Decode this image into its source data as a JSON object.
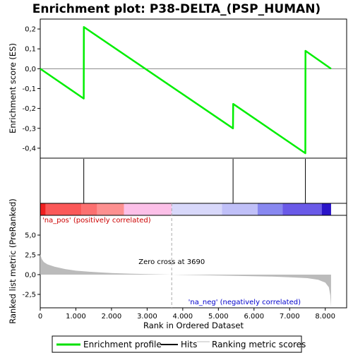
{
  "chart_data": {
    "type": "line",
    "title": "Enrichment plot: P38-DELTA_(PSP_HUMAN)",
    "es_panel": {
      "ylabel": "Enrichment score (ES)",
      "ylim": [
        -0.45,
        0.25
      ],
      "yticks": [
        0.2,
        0.1,
        0.0,
        -0.1,
        -0.2,
        -0.3,
        -0.4
      ],
      "ytick_labels": [
        "0,2",
        "0,1",
        "0,0",
        "-0,1",
        "-0,2",
        "-0,3",
        "-0,4"
      ],
      "profile": [
        {
          "x": 0,
          "y": 0.0
        },
        {
          "x": 1220,
          "y": -0.15
        },
        {
          "x": 1225,
          "y": 0.21
        },
        {
          "x": 5410,
          "y": -0.3
        },
        {
          "x": 5415,
          "y": -0.177
        },
        {
          "x": 7440,
          "y": -0.425
        },
        {
          "x": 7445,
          "y": 0.09
        },
        {
          "x": 8163,
          "y": 0.0
        }
      ]
    },
    "hits": [
      1222,
      5412,
      7442
    ],
    "rank_panel": {
      "ylabel": "Ranked list metric (PreRanked)",
      "ylim": [
        -4.2,
        7.5
      ],
      "yticks": [
        5.0,
        2.5,
        0.0,
        -2.5
      ],
      "ytick_labels": [
        "5,0",
        "2,5",
        "0,0",
        "-2,5"
      ],
      "metric_curve": [
        {
          "x": 0,
          "y": 2.6
        },
        {
          "x": 40,
          "y": 2.0
        },
        {
          "x": 100,
          "y": 1.6
        },
        {
          "x": 200,
          "y": 1.3
        },
        {
          "x": 400,
          "y": 1.0
        },
        {
          "x": 700,
          "y": 0.7
        },
        {
          "x": 1000,
          "y": 0.5
        },
        {
          "x": 1500,
          "y": 0.33
        },
        {
          "x": 2000,
          "y": 0.2
        },
        {
          "x": 2500,
          "y": 0.12
        },
        {
          "x": 3000,
          "y": 0.06
        },
        {
          "x": 3690,
          "y": 0.0
        },
        {
          "x": 4500,
          "y": -0.07
        },
        {
          "x": 5500,
          "y": -0.15
        },
        {
          "x": 6500,
          "y": -0.25
        },
        {
          "x": 7000,
          "y": -0.33
        },
        {
          "x": 7500,
          "y": -0.45
        },
        {
          "x": 7800,
          "y": -0.65
        },
        {
          "x": 8000,
          "y": -1.0
        },
        {
          "x": 8100,
          "y": -1.6
        },
        {
          "x": 8140,
          "y": -2.6
        },
        {
          "x": 8163,
          "y": -4.1
        }
      ],
      "zero_cross": 3690,
      "zero_cross_label": "Zero cross at 3690",
      "pos_label": "'na_pos' (positively correlated)",
      "neg_label": "'na_neg' (negatively correlated)"
    },
    "xlabel": "Rank in Ordered Dataset",
    "xlim": [
      0,
      8600
    ],
    "xticks": [
      0,
      1000,
      2000,
      3000,
      4000,
      5000,
      6000,
      7000,
      8000
    ],
    "xtick_labels": [
      "0",
      "1.000",
      "2.000",
      "3.000",
      "4.000",
      "5.000",
      "6.000",
      "7.000",
      "8.000"
    ],
    "color_bar": [
      {
        "from": 0,
        "to": 150,
        "color": "#f02020"
      },
      {
        "from": 150,
        "to": 1150,
        "color": "#fb5858"
      },
      {
        "from": 1150,
        "to": 1600,
        "color": "#fc7070"
      },
      {
        "from": 1600,
        "to": 2350,
        "color": "#fd9090"
      },
      {
        "from": 2350,
        "to": 3690,
        "color": "#fcc0e8"
      },
      {
        "from": 3690,
        "to": 5100,
        "color": "#d8d8fa"
      },
      {
        "from": 5100,
        "to": 6100,
        "color": "#c0c0f8"
      },
      {
        "from": 6100,
        "to": 6800,
        "color": "#8888f0"
      },
      {
        "from": 6800,
        "to": 7900,
        "color": "#6a5ae8"
      },
      {
        "from": 7900,
        "to": 8163,
        "color": "#2a14c8"
      }
    ],
    "legend": {
      "placement": "bottom",
      "entries": [
        {
          "label": "Enrichment profile",
          "color": "#00e000"
        },
        {
          "label": "Hits",
          "color": "#000000"
        },
        {
          "label": "Ranking metric scores",
          "color": "#bbbbbb"
        }
      ]
    },
    "colors": {
      "profile": "#00ee00",
      "pos_label": "#cc0000",
      "neg_label": "#0000cc",
      "metric_fill": "#bbbbbb",
      "zero_cross_line": "#aaaaaa"
    }
  }
}
